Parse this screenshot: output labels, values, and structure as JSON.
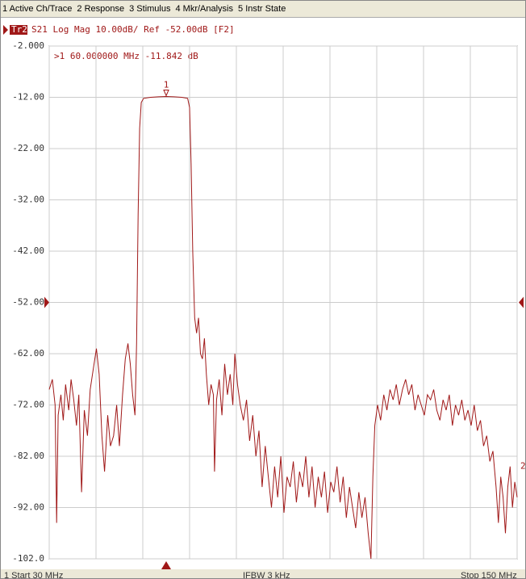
{
  "menu": [
    "1 Active Ch/Trace",
    "2 Response",
    "3 Stimulus",
    "4 Mkr/Analysis",
    "5 Instr State"
  ],
  "trace_header": {
    "badge": "Tr2",
    "text": "S21 Log Mag 10.00dB/ Ref -52.00dB [F2]"
  },
  "status": {
    "start": "1  Start 30 MHz",
    "ifbw": "IFBW 3 kHz",
    "stop": "Stop 150 MHz"
  },
  "chart_data": {
    "type": "line",
    "grid": true,
    "ref_level": -52,
    "xlim": [
      30,
      150
    ],
    "xticks": [
      30,
      42,
      54,
      66,
      78,
      90,
      102,
      114,
      126,
      138,
      150
    ],
    "ylim": [
      -102,
      -2
    ],
    "yticks": [
      {
        "value": -2,
        "label": "-2.000"
      },
      {
        "value": -12,
        "label": "-12.00"
      },
      {
        "value": -22,
        "label": "-22.00"
      },
      {
        "value": -32,
        "label": "-32.00"
      },
      {
        "value": -42,
        "label": "-42.00"
      },
      {
        "value": -52,
        "label": "-52.00"
      },
      {
        "value": -62,
        "label": "-62.00"
      },
      {
        "value": -72,
        "label": "-72.00"
      },
      {
        "value": -82,
        "label": "-82.00"
      },
      {
        "value": -92,
        "label": "-92.00"
      },
      {
        "value": -102,
        "label": "-102.0"
      }
    ],
    "marker": {
      "label": "1",
      "x": 60,
      "y": -11.842,
      "readout": ">1  60.000000 MHz -11.842 dB"
    },
    "edge_marker": "2",
    "series": [
      {
        "color": "#a01818",
        "x": [
          30,
          30.8,
          31.5,
          31.9,
          32.3,
          33,
          33.6,
          34.2,
          35,
          35.6,
          36.3,
          37,
          37.6,
          38.3,
          39,
          39.8,
          40.5,
          41.3,
          42.1,
          42.8,
          43.5,
          44.2,
          45,
          45.7,
          46.5,
          47.3,
          48,
          48.8,
          49.5,
          50.2,
          50.8,
          51.4,
          52,
          52.4,
          52.8,
          53.2,
          53.6,
          54.2,
          56,
          58,
          60,
          62,
          64,
          65.5,
          66,
          66.4,
          66.8,
          67.3,
          67.8,
          68.3,
          68.8,
          69.3,
          69.8,
          70.3,
          70.9,
          71.5,
          72.1,
          72.4,
          72.9,
          73.6,
          74.3,
          75,
          75.7,
          76.4,
          77.1,
          77.6,
          78.3,
          79,
          79.8,
          80.6,
          81.4,
          82.2,
          83,
          83.8,
          84.6,
          85.4,
          86.2,
          87,
          87.8,
          88.6,
          89.4,
          90.2,
          91,
          91.8,
          92.6,
          93.4,
          94.2,
          95,
          95.8,
          96.6,
          97.4,
          98.2,
          99,
          99.8,
          100.6,
          101.4,
          102.2,
          103,
          103.8,
          104.6,
          105.4,
          106.2,
          107,
          107.8,
          108.6,
          109.4,
          110.2,
          111,
          111.8,
          112.5,
          113,
          113.5,
          114.2,
          115,
          115.8,
          116.6,
          117.4,
          118.2,
          119,
          119.8,
          120.6,
          121.4,
          122.2,
          123,
          123.8,
          124.6,
          125.4,
          126.2,
          127,
          127.8,
          128.6,
          129.4,
          130.2,
          131,
          131.8,
          132.6,
          133.4,
          134.2,
          135,
          135.8,
          136.6,
          137.4,
          138.2,
          139,
          139.8,
          140.6,
          141.4,
          142.2,
          143,
          143.8,
          144.6,
          145.2,
          145.8,
          146.4,
          147,
          147.6,
          148.2,
          148.8,
          149.4,
          150
        ],
        "values": [
          -69,
          -67,
          -72,
          -95,
          -74,
          -70,
          -75,
          -68,
          -73,
          -67,
          -71,
          -76,
          -70,
          -89,
          -73,
          -78,
          -69,
          -65,
          -61,
          -66,
          -78,
          -85,
          -74,
          -80,
          -78,
          -72,
          -80,
          -70,
          -63,
          -60,
          -64,
          -70,
          -74,
          -60,
          -35,
          -18,
          -13,
          -12.2,
          -12.0,
          -11.9,
          -11.842,
          -11.9,
          -12.0,
          -12.2,
          -14,
          -25,
          -42,
          -55,
          -58,
          -55,
          -62,
          -63,
          -59,
          -66,
          -72,
          -68,
          -70,
          -85,
          -71,
          -67,
          -74,
          -64,
          -70,
          -66,
          -72,
          -62,
          -68,
          -72,
          -75,
          -71,
          -79,
          -74,
          -82,
          -77,
          -88,
          -80,
          -86,
          -92,
          -84,
          -90,
          -82,
          -93,
          -86,
          -88,
          -83,
          -91,
          -85,
          -88,
          -82,
          -90,
          -84,
          -92,
          -86,
          -90,
          -85,
          -93,
          -87,
          -89,
          -84,
          -91,
          -86,
          -94,
          -88,
          -92,
          -96,
          -89,
          -94,
          -90,
          -97,
          -102,
          -86,
          -76,
          -72,
          -75,
          -70,
          -73,
          -69,
          -71,
          -68,
          -72,
          -69,
          -67,
          -70,
          -68,
          -73,
          -70,
          -72,
          -74,
          -70,
          -71,
          -69,
          -73,
          -75,
          -71,
          -73,
          -70,
          -76,
          -72,
          -74,
          -71,
          -75,
          -73,
          -76,
          -72,
          -77,
          -75,
          -80,
          -78,
          -83,
          -81,
          -88,
          -95,
          -86,
          -90,
          -97,
          -88,
          -84,
          -92,
          -87,
          -90
        ]
      }
    ]
  }
}
